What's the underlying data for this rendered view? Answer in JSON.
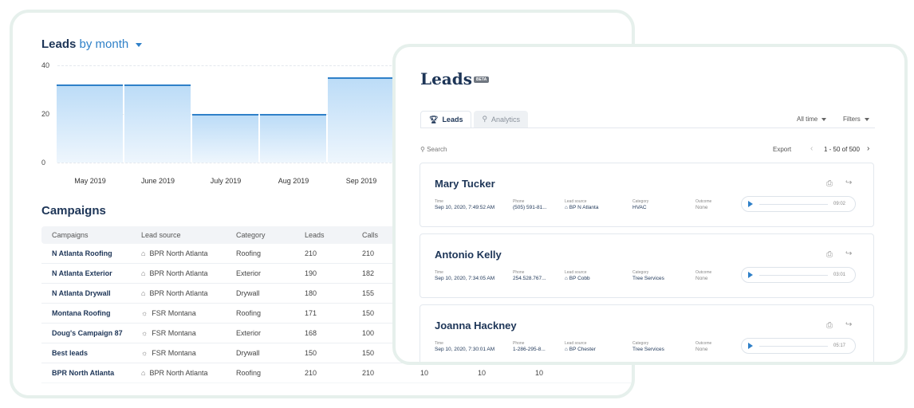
{
  "back": {
    "title_main": "Leads",
    "title_sub": "by month",
    "chart_data": {
      "type": "bar",
      "categories": [
        "May 2019",
        "June 2019",
        "July 2019",
        "Aug 2019",
        "Sep 2019"
      ],
      "values": [
        32,
        32,
        20,
        20,
        35
      ],
      "ylim": [
        0,
        40
      ],
      "yticks": [
        "40",
        "20",
        "0"
      ],
      "grid": true
    },
    "campaigns_title": "Campaigns",
    "columns": [
      "Campaigns",
      "Lead source",
      "Category",
      "Leads",
      "Calls"
    ],
    "rows": [
      {
        "name": "N Atlanta Roofing",
        "source": "BPR North Atlanta",
        "source_icon": "building-icon",
        "category": "Roofing",
        "leads": "210",
        "calls": "210",
        "c6": "",
        "c7": "",
        "c8": ""
      },
      {
        "name": "N Atlanta Exterior",
        "source": "BPR North Atlanta",
        "source_icon": "building-icon",
        "category": "Exterior",
        "leads": "190",
        "calls": "182",
        "c6": "",
        "c7": "",
        "c8": ""
      },
      {
        "name": "N Atlanta Drywall",
        "source": "BPR North Atlanta",
        "source_icon": "building-icon",
        "category": "Drywall",
        "leads": "180",
        "calls": "155",
        "c6": "",
        "c7": "",
        "c8": ""
      },
      {
        "name": "Montana Roofing",
        "source": "FSR Montana",
        "source_icon": "sun-icon",
        "category": "Roofing",
        "leads": "171",
        "calls": "150",
        "c6": "",
        "c7": "",
        "c8": ""
      },
      {
        "name": "Doug's Campaign 87",
        "source": "FSR Montana",
        "source_icon": "sun-icon",
        "category": "Exterior",
        "leads": "168",
        "calls": "100",
        "c6": "",
        "c7": "",
        "c8": ""
      },
      {
        "name": "Best leads",
        "source": "FSR Montana",
        "source_icon": "sun-icon",
        "category": "Drywall",
        "leads": "150",
        "calls": "150",
        "c6": "",
        "c7": "",
        "c8": ""
      },
      {
        "name": "BPR North Atlanta",
        "source": "BPR North Atlanta",
        "source_icon": "building-icon",
        "category": "Roofing",
        "leads": "210",
        "calls": "210",
        "c6": "10",
        "c7": "10",
        "c8": "10"
      }
    ]
  },
  "front": {
    "title": "Leads",
    "badge": "BETA",
    "tabs": [
      {
        "label": "Leads",
        "icon": "trophy-icon"
      },
      {
        "label": "Analytics",
        "icon": "analytics-icon"
      }
    ],
    "filter_time": "All time",
    "filter_label": "Filters",
    "search_placeholder": "Search",
    "export_label": "Export",
    "pagination": "1 - 50 of 500",
    "field_labels": {
      "time": "Time",
      "phone": "Phone",
      "source": "Lead source",
      "category": "Category",
      "outcome": "Outcome"
    },
    "leads": [
      {
        "name": "Mary Tucker",
        "time": "Sep 10, 2020, 7:49:52 AM",
        "phone": "(505) 591-81...",
        "source": "BP N Atlanta",
        "category": "HVAC",
        "outcome": "None",
        "duration": "09:02"
      },
      {
        "name": "Antonio Kelly",
        "time": "Sep 10, 2020, 7:34:05 AM",
        "phone": "254.528.767...",
        "source": "BP Cobb",
        "category": "Tree Services",
        "outcome": "None",
        "duration": "03:01"
      },
      {
        "name": "Joanna Hackney",
        "time": "Sep 10, 2020, 7:30:01 AM",
        "phone": "1-286-295-8...",
        "source": "BP Chester",
        "category": "Tree Services",
        "outcome": "None",
        "duration": "05:17"
      }
    ]
  }
}
